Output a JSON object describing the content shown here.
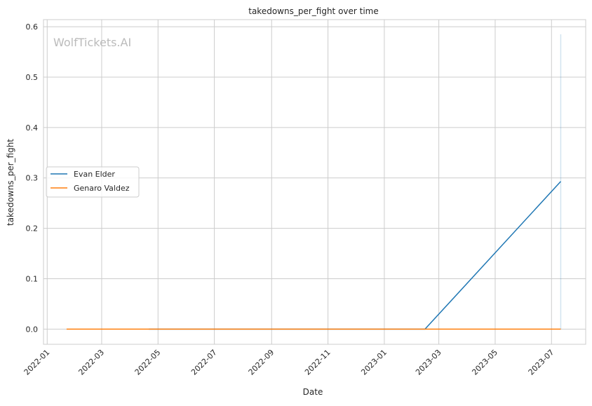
{
  "chart_data": {
    "type": "line",
    "title": "takedowns_per_fight over time",
    "xlabel": "Date",
    "ylabel": "takedowns_per_fight",
    "watermark": "WolfTickets.AI",
    "xlim": [
      "2021-12-28",
      "2023-08-07"
    ],
    "ylim": [
      -0.03,
      0.614
    ],
    "grid": true,
    "legend_position": "center-left",
    "x_ticks": [
      "2022-01",
      "2022-03",
      "2022-05",
      "2022-07",
      "2022-09",
      "2022-11",
      "2023-01",
      "2023-03",
      "2023-05",
      "2023-07"
    ],
    "y_ticks": [
      "0.0",
      "0.1",
      "0.2",
      "0.3",
      "0.4",
      "0.5",
      "0.6"
    ],
    "series": [
      {
        "name": "Evan Elder",
        "color": "#1f77b4",
        "x": [
          "2022-04-21",
          "2023-02-14",
          "2023-07-11"
        ],
        "y": [
          0.0,
          0.0,
          0.293
        ],
        "band": {
          "x": "2023-07-11",
          "low": 0.0,
          "high": 0.585
        }
      },
      {
        "name": "Genaro Valdez",
        "color": "#ff7f0e",
        "x": [
          "2022-01-22",
          "2023-07-11"
        ],
        "y": [
          0.0,
          0.0
        ]
      }
    ]
  }
}
